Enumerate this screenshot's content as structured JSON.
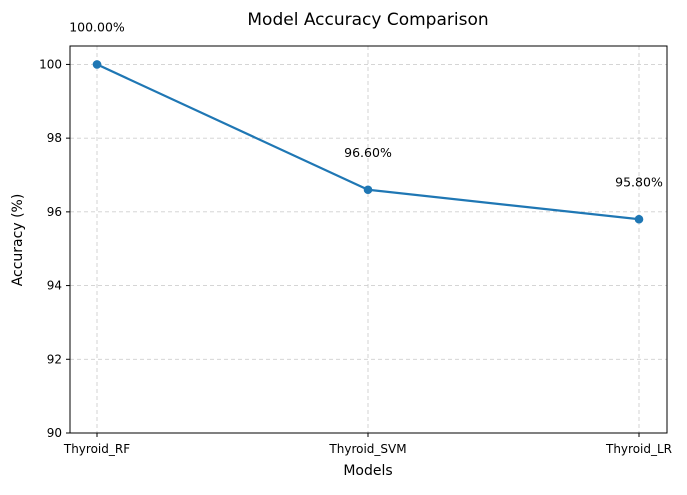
{
  "chart_data": {
    "type": "line",
    "title": "Model Accuracy Comparison",
    "xlabel": "Models",
    "ylabel": "Accuracy (%)",
    "categories": [
      "Thyroid_RF",
      "Thyroid_SVM",
      "Thyroid_LR"
    ],
    "series": [
      {
        "values": [
          100.0,
          96.6,
          95.8
        ],
        "color": "#1f77b4"
      }
    ],
    "data_labels": [
      "100.00%",
      "96.60%",
      "95.80%"
    ],
    "ylim": [
      90,
      100.5
    ],
    "yticks": [
      90,
      92,
      94,
      96,
      98,
      100
    ],
    "grid": true,
    "legend": "none"
  }
}
